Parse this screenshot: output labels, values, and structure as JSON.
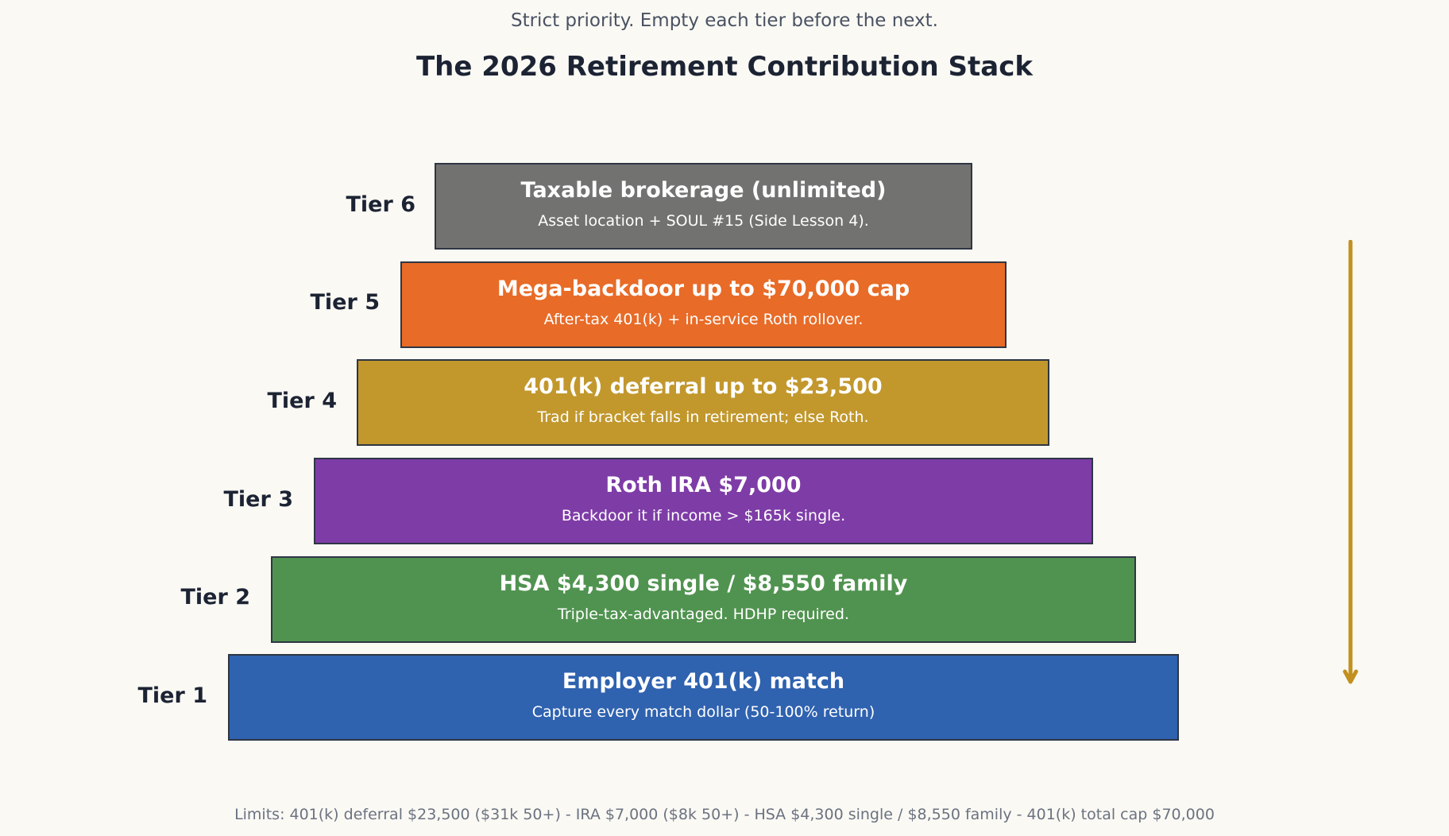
{
  "subtitle": "Strict priority. Empty each tier before the next.",
  "title": "The 2026 Retirement Contribution Stack",
  "tiers": [
    {
      "label": "Tier 6",
      "title": "Taxable brokerage (unlimited)",
      "description": "Asset location + SOUL #15 (Side Lesson 4).",
      "color": "#727270"
    },
    {
      "label": "Tier 5",
      "title": "Mega-backdoor up to $70,000 cap",
      "description": "After-tax 401(k) + in-service Roth rollover.",
      "color": "#e86b27"
    },
    {
      "label": "Tier 4",
      "title": "401(k) deferral up to $23,500",
      "description": "Trad if bracket falls in retirement; else Roth.",
      "color": "#c2982d"
    },
    {
      "label": "Tier 3",
      "title": "Roth IRA $7,000",
      "description": "Backdoor it if income > $165k single.",
      "color": "#7e3ca7"
    },
    {
      "label": "Tier 2",
      "title": "HSA $4,300 single / $8,550 family",
      "description": "Triple-tax-advantaged. HDHP required.",
      "color": "#509350"
    },
    {
      "label": "Tier 1",
      "title": "Employer 401(k) match",
      "description": "Capture every match dollar (50-100% return)",
      "color": "#2f62af"
    }
  ],
  "arrow_color": "#c2901f",
  "footer": "Limits: 401(k) deferral $23,500 ($31k 50+) - IRA $7,000 ($8k 50+) - HSA $4,300 single / $8,550 family - 401(k) total cap $70,000"
}
